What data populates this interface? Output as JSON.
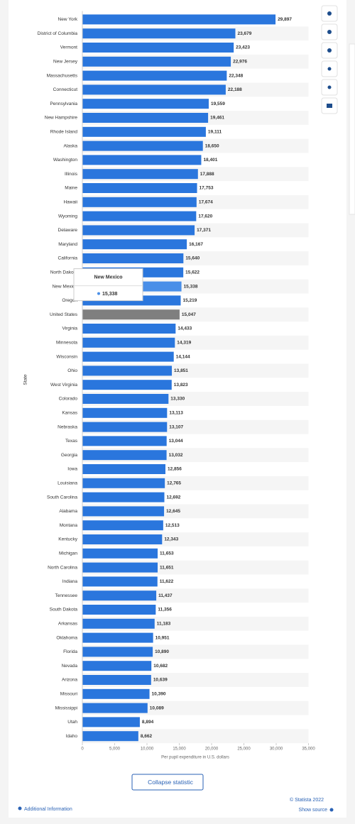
{
  "chart_data": {
    "type": "bar",
    "orientation": "horizontal",
    "y_axis_title": "State",
    "x_axis_title": "Per pupil expenditure in U.S. dollars",
    "categories": [
      "New York",
      "District of Columbia",
      "Vermont",
      "New Jersey",
      "Massachusetts",
      "Connecticut",
      "Pennsylvania",
      "New Hampshire",
      "Rhode Island",
      "Alaska",
      "Washington",
      "Illinois",
      "Maine",
      "Hawaii",
      "Wyoming",
      "Delaware",
      "Maryland",
      "California",
      "North Dakota",
      "New Mexico",
      "Oregon",
      "United States",
      "Virginia",
      "Minnesota",
      "Wisconsin",
      "Ohio",
      "West Virginia",
      "Colorado",
      "Kansas",
      "Nebraska",
      "Texas",
      "Georgia",
      "Iowa",
      "Louisiana",
      "South Carolina",
      "Alabama",
      "Montana",
      "Kentucky",
      "Michigan",
      "North Carolina",
      "Indiana",
      "Tennessee",
      "South Dakota",
      "Arkansas",
      "Oklahoma",
      "Florida",
      "Nevada",
      "Arizona",
      "Missouri",
      "Mississippi",
      "Utah",
      "Idaho"
    ],
    "values": [
      29897,
      23679,
      23423,
      22976,
      22348,
      22188,
      19559,
      19461,
      19111,
      18650,
      18401,
      17888,
      17753,
      17674,
      17620,
      17371,
      16167,
      15640,
      15622,
      15338,
      15219,
      15047,
      14433,
      14319,
      14144,
      13851,
      13823,
      13330,
      13113,
      13107,
      13044,
      13032,
      12856,
      12765,
      12692,
      12645,
      12513,
      12343,
      11653,
      11651,
      11622,
      11437,
      11356,
      11183,
      10951,
      10890,
      10682,
      10639,
      10390,
      10089,
      8894,
      8662
    ],
    "value_labels": [
      "29,897",
      "23,679",
      "23,423",
      "22,976",
      "22,348",
      "22,188",
      "19,559",
      "19,461",
      "19,111",
      "18,650",
      "18,401",
      "17,888",
      "17,753",
      "17,674",
      "17,620",
      "17,371",
      "16,167",
      "15,640",
      "15,622",
      "15,338",
      "15,219",
      "15,047",
      "14,433",
      "14,319",
      "14,144",
      "13,851",
      "13,823",
      "13,330",
      "13,113",
      "13,107",
      "13,044",
      "13,032",
      "12,856",
      "12,765",
      "12,692",
      "12,645",
      "12,513",
      "12,343",
      "11,653",
      "11,651",
      "11,622",
      "11,437",
      "11,356",
      "11,183",
      "10,951",
      "10,890",
      "10,682",
      "10,639",
      "10,390",
      "10,089",
      "8,894",
      "8,662"
    ],
    "colors": [
      "#2a76dd",
      "#2a76dd",
      "#2a76dd",
      "#2a76dd",
      "#2a76dd",
      "#2a76dd",
      "#2a76dd",
      "#2a76dd",
      "#2a76dd",
      "#2a76dd",
      "#2a76dd",
      "#2a76dd",
      "#2a76dd",
      "#2a76dd",
      "#2a76dd",
      "#2a76dd",
      "#2a76dd",
      "#2a76dd",
      "#2a76dd",
      "#4a8fe8",
      "#2a76dd",
      "#7f7f7f",
      "#2a76dd",
      "#2a76dd",
      "#2a76dd",
      "#2a76dd",
      "#2a76dd",
      "#2a76dd",
      "#2a76dd",
      "#2a76dd",
      "#2a76dd",
      "#2a76dd",
      "#2a76dd",
      "#2a76dd",
      "#2a76dd",
      "#2a76dd",
      "#2a76dd",
      "#2a76dd",
      "#2a76dd",
      "#2a76dd",
      "#2a76dd",
      "#2a76dd",
      "#2a76dd",
      "#2a76dd",
      "#2a76dd",
      "#2a76dd",
      "#2a76dd",
      "#2a76dd",
      "#2a76dd",
      "#2a76dd",
      "#2a76dd",
      "#2a76dd"
    ],
    "xlim": [
      0,
      35000
    ],
    "xticks": [
      0,
      {
        "value": 5000,
        "label": "5,000"
      },
      {
        "value": 10000,
        "label": "10,000"
      },
      {
        "value": 15000,
        "label": "15,000"
      },
      {
        "value": 20000,
        "label": "20,000"
      },
      {
        "value": 25000,
        "label": "25,000"
      },
      {
        "value": 30000,
        "label": "30,000"
      },
      {
        "value": 35000,
        "label": "35,000"
      }
    ],
    "tooltip_index": 19
  },
  "ui": {
    "collapse_button": "Collapse statistic",
    "copyright": "© Statista 2022",
    "additional_info": "Additional Information",
    "show_source": "Show source"
  }
}
